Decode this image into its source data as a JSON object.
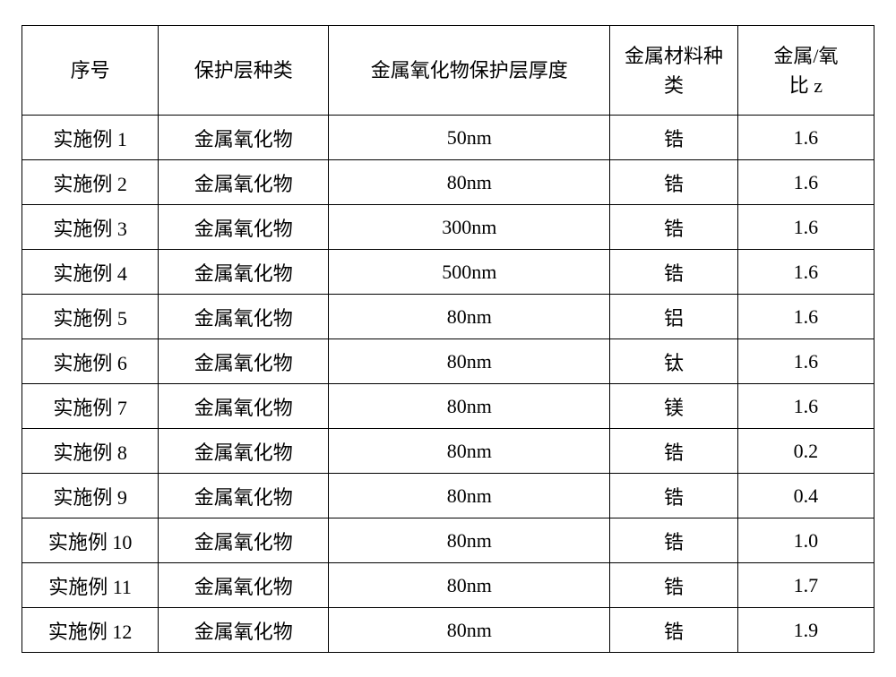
{
  "table": {
    "columns": [
      {
        "lines": [
          "序号"
        ]
      },
      {
        "lines": [
          "保护层种类"
        ]
      },
      {
        "lines": [
          "金属氧化物保护层厚度"
        ]
      },
      {
        "lines": [
          "金属材料种",
          "类"
        ]
      },
      {
        "lines": [
          "金属/氧",
          "比 z"
        ]
      }
    ],
    "rows": [
      {
        "seq": "实施例 1",
        "type": "金属氧化物",
        "thickness": "50nm",
        "metal": "锆",
        "ratio": "1.6"
      },
      {
        "seq": "实施例 2",
        "type": "金属氧化物",
        "thickness": "80nm",
        "metal": "锆",
        "ratio": "1.6"
      },
      {
        "seq": "实施例 3",
        "type": "金属氧化物",
        "thickness": "300nm",
        "metal": "锆",
        "ratio": "1.6"
      },
      {
        "seq": "实施例 4",
        "type": "金属氧化物",
        "thickness": "500nm",
        "metal": "锆",
        "ratio": "1.6"
      },
      {
        "seq": "实施例 5",
        "type": "金属氧化物",
        "thickness": "80nm",
        "metal": "铝",
        "ratio": "1.6"
      },
      {
        "seq": "实施例 6",
        "type": "金属氧化物",
        "thickness": "80nm",
        "metal": "钛",
        "ratio": "1.6"
      },
      {
        "seq": "实施例 7",
        "type": "金属氧化物",
        "thickness": "80nm",
        "metal": "镁",
        "ratio": "1.6"
      },
      {
        "seq": "实施例 8",
        "type": "金属氧化物",
        "thickness": "80nm",
        "metal": "锆",
        "ratio": "0.2"
      },
      {
        "seq": "实施例 9",
        "type": "金属氧化物",
        "thickness": "80nm",
        "metal": "锆",
        "ratio": "0.4"
      },
      {
        "seq": "实施例 10",
        "type": "金属氧化物",
        "thickness": "80nm",
        "metal": "锆",
        "ratio": "1.0"
      },
      {
        "seq": "实施例 11",
        "type": "金属氧化物",
        "thickness": "80nm",
        "metal": "锆",
        "ratio": "1.7"
      },
      {
        "seq": "实施例 12",
        "type": "金属氧化物",
        "thickness": "80nm",
        "metal": "锆",
        "ratio": "1.9"
      }
    ]
  }
}
